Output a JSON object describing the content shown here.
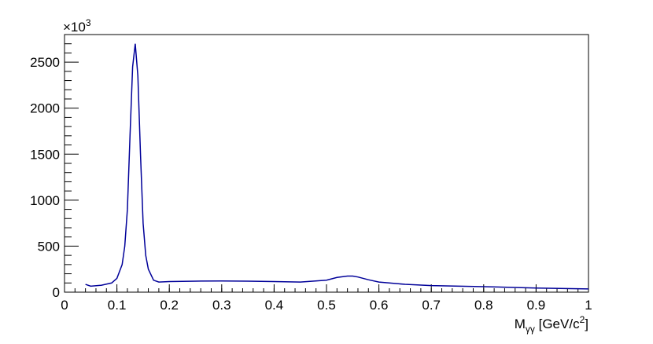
{
  "chart_data": {
    "type": "line",
    "y_multiplier": {
      "base": "×10",
      "exp": "3"
    },
    "x_label": {
      "base": "M",
      "sub": "γγ",
      "unit": " [GeV/c",
      "sup": "2",
      "close": "]"
    },
    "x": [
      0.04,
      0.05,
      0.07,
      0.09,
      0.1,
      0.11,
      0.115,
      0.12,
      0.125,
      0.13,
      0.135,
      0.14,
      0.145,
      0.15,
      0.155,
      0.16,
      0.17,
      0.18,
      0.2,
      0.25,
      0.3,
      0.35,
      0.4,
      0.45,
      0.5,
      0.52,
      0.54,
      0.55,
      0.56,
      0.58,
      0.6,
      0.65,
      0.7,
      0.8,
      0.9,
      1.0
    ],
    "series": [
      {
        "color": "#000099",
        "values": [
          85,
          65,
          75,
          100,
          150,
          300,
          500,
          900,
          1700,
          2450,
          2700,
          2350,
          1500,
          750,
          400,
          250,
          130,
          110,
          115,
          120,
          122,
          120,
          115,
          110,
          130,
          160,
          175,
          175,
          165,
          135,
          110,
          85,
          72,
          60,
          45,
          35
        ]
      }
    ],
    "xlim": [
      0,
      1
    ],
    "ylim": [
      0,
      2800
    ],
    "xticks": [
      0,
      0.1,
      0.2,
      0.3,
      0.4,
      0.5,
      0.6,
      0.7,
      0.8,
      0.9,
      1
    ],
    "yticks": [
      0,
      500,
      1000,
      1500,
      2000,
      2500
    ]
  }
}
